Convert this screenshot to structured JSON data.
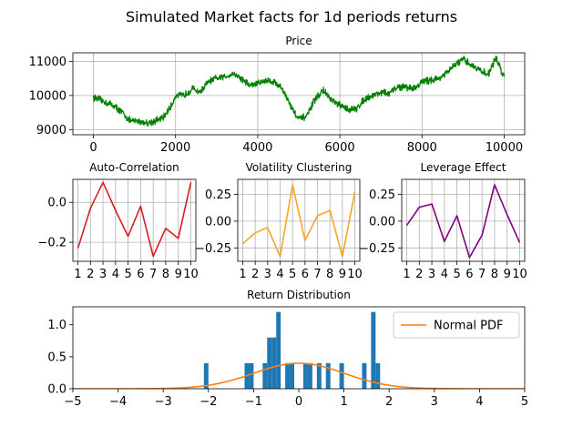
{
  "suptitle": "Simulated Market facts for 1d periods returns",
  "chart_data": [
    {
      "id": "price",
      "type": "line",
      "title": "Price",
      "color": "#008000",
      "grid": true,
      "xlim": [
        -500,
        10500
      ],
      "ylim": [
        8850,
        11250
      ],
      "xticks": [
        0,
        2000,
        4000,
        6000,
        8000,
        10000
      ],
      "yticks": [
        9000,
        10000,
        11000
      ],
      "anchors": [
        [
          0,
          9950
        ],
        [
          300,
          9800
        ],
        [
          500,
          9700
        ],
        [
          700,
          9500
        ],
        [
          900,
          9250
        ],
        [
          1100,
          9250
        ],
        [
          1300,
          9200
        ],
        [
          1500,
          9250
        ],
        [
          1700,
          9350
        ],
        [
          1900,
          9700
        ],
        [
          2000,
          10000
        ],
        [
          2200,
          10000
        ],
        [
          2400,
          10200
        ],
        [
          2600,
          10100
        ],
        [
          2800,
          10400
        ],
        [
          3000,
          10500
        ],
        [
          3200,
          10550
        ],
        [
          3400,
          10650
        ],
        [
          3600,
          10500
        ],
        [
          3800,
          10300
        ],
        [
          4000,
          10350
        ],
        [
          4200,
          10450
        ],
        [
          4400,
          10400
        ],
        [
          4600,
          10200
        ],
        [
          4800,
          9700
        ],
        [
          5000,
          9300
        ],
        [
          5200,
          9400
        ],
        [
          5400,
          9900
        ],
        [
          5600,
          10150
        ],
        [
          5800,
          9850
        ],
        [
          6000,
          9700
        ],
        [
          6200,
          9600
        ],
        [
          6400,
          9600
        ],
        [
          6600,
          9900
        ],
        [
          6800,
          10000
        ],
        [
          7000,
          10100
        ],
        [
          7200,
          10050
        ],
        [
          7400,
          10250
        ],
        [
          7600,
          10250
        ],
        [
          7800,
          10200
        ],
        [
          8000,
          10400
        ],
        [
          8200,
          10450
        ],
        [
          8400,
          10500
        ],
        [
          8600,
          10650
        ],
        [
          8800,
          10900
        ],
        [
          9000,
          11050
        ],
        [
          9200,
          10900
        ],
        [
          9400,
          10750
        ],
        [
          9600,
          10600
        ],
        [
          9800,
          11100
        ],
        [
          10000,
          10550
        ]
      ]
    },
    {
      "id": "autocorr",
      "type": "line",
      "title": "Auto-Correlation",
      "color": "#d62020",
      "grid": true,
      "xlim": [
        0.6,
        10.4
      ],
      "ylim": [
        -0.295,
        0.115
      ],
      "xticks": [
        1,
        2,
        3,
        4,
        5,
        6,
        7,
        8,
        9,
        10
      ],
      "yticks": [
        -0.2,
        0.0
      ],
      "ytick_labels": [
        "−0.2",
        "0.0"
      ],
      "x": [
        1,
        2,
        3,
        4,
        5,
        6,
        7,
        8,
        9,
        10
      ],
      "y": [
        -0.23,
        -0.03,
        0.1,
        -0.04,
        -0.17,
        -0.02,
        -0.27,
        -0.13,
        -0.18,
        0.1
      ]
    },
    {
      "id": "volclust",
      "type": "line",
      "title": "Volatility Clustering",
      "color": "#f5a623",
      "grid": true,
      "xlim": [
        0.6,
        10.4
      ],
      "ylim": [
        -0.375,
        0.39
      ],
      "xticks": [
        1,
        2,
        3,
        4,
        5,
        6,
        7,
        8,
        9,
        10
      ],
      "yticks": [
        -0.25,
        0.0,
        0.25
      ],
      "ytick_labels": [
        "−0.25",
        "0.00",
        "0.25"
      ],
      "x": [
        1,
        2,
        3,
        4,
        5,
        6,
        7,
        8,
        9,
        10
      ],
      "y": [
        -0.21,
        -0.11,
        -0.06,
        -0.33,
        0.34,
        -0.18,
        0.05,
        0.1,
        -0.33,
        0.27
      ]
    },
    {
      "id": "leverage",
      "type": "line",
      "title": "Leverage Effect",
      "color": "#800080",
      "grid": true,
      "xlim": [
        0.6,
        10.4
      ],
      "ylim": [
        -0.375,
        0.39
      ],
      "xticks": [
        1,
        2,
        3,
        4,
        5,
        6,
        7,
        8,
        9,
        10
      ],
      "yticks": [
        -0.25,
        0.0,
        0.25
      ],
      "ytick_labels": [
        "−0.25",
        "0.00",
        "0.25"
      ],
      "x": [
        1,
        2,
        3,
        4,
        5,
        6,
        7,
        8,
        9,
        10
      ],
      "y": [
        -0.04,
        0.13,
        0.16,
        -0.19,
        0.05,
        -0.34,
        -0.13,
        0.34,
        0.06,
        -0.2
      ]
    },
    {
      "id": "retdist",
      "type": "bar",
      "title": "Return Distribution",
      "bar_color": "#1f77b4",
      "pdf_color": "#ff7f0e",
      "grid": false,
      "xlim": [
        -5,
        5
      ],
      "ylim": [
        0,
        1.28
      ],
      "xticks": [
        -5,
        -4,
        -3,
        -2,
        -1,
        0,
        1,
        2,
        3,
        4,
        5
      ],
      "xtick_labels": [
        "−5",
        "−4",
        "−3",
        "−2",
        "−1",
        "0",
        "1",
        "2",
        "3",
        "4",
        "5"
      ],
      "yticks": [
        0.0,
        0.5,
        1.0
      ],
      "ytick_labels": [
        "0.0",
        "0.5",
        "1.0"
      ],
      "bin_width": 0.1,
      "bins": [
        [
          -2.1,
          0.4
        ],
        [
          -1.2,
          0.4
        ],
        [
          -1.1,
          0.4
        ],
        [
          -0.8,
          0.4
        ],
        [
          -0.7,
          0.8
        ],
        [
          -0.6,
          0.8
        ],
        [
          -0.5,
          1.2
        ],
        [
          -0.3,
          0.4
        ],
        [
          -0.2,
          0.4
        ],
        [
          0.1,
          0.4
        ],
        [
          0.2,
          0.4
        ],
        [
          0.4,
          0.4
        ],
        [
          0.6,
          0.4
        ],
        [
          0.9,
          0.4
        ],
        [
          1.4,
          0.4
        ],
        [
          1.6,
          1.2
        ],
        [
          1.7,
          0.4
        ]
      ],
      "pdf_mean": 0,
      "pdf_std": 1,
      "legend": {
        "label": "Normal PDF",
        "position": "upper right"
      }
    }
  ]
}
